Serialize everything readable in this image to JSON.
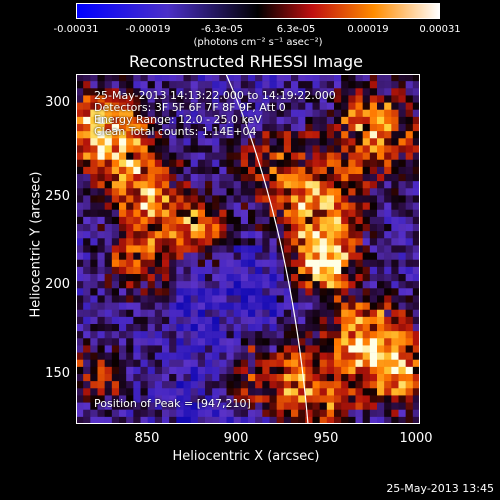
{
  "colorbar": {
    "ticks": [
      "-0.00031",
      "-0.00019",
      "-6.3e-05",
      "6.3e-05",
      "0.00019",
      "0.00031"
    ],
    "units": "(photons cm⁻² s⁻¹ asec⁻²)",
    "colors": [
      "#0000ff",
      "#5a2db0",
      "#000000",
      "#c01010",
      "#ff9a00",
      "#ffffff"
    ]
  },
  "title": "Reconstructed RHESSI Image",
  "info": {
    "time": "25-May-2013 14:13:22.000 to 14:19:22.000",
    "detectors": "Detectors: 3F 5F 6F 7F 8F 9F, Att 0",
    "energy": "Energy Range: 12.0 - 25.0 keV",
    "clean": "Clean    Total counts: 1.14E+04",
    "peak": "Position of Peak = [947,210]"
  },
  "axes": {
    "xlabel": "Heliocentric X (arcsec)",
    "ylabel": "Heliocentric Y (arcsec)",
    "xticks": [
      "850",
      "900",
      "950",
      "1000"
    ],
    "yticks": [
      "300",
      "250",
      "200",
      "150"
    ]
  },
  "footer": "25-May-2013 13:45"
}
